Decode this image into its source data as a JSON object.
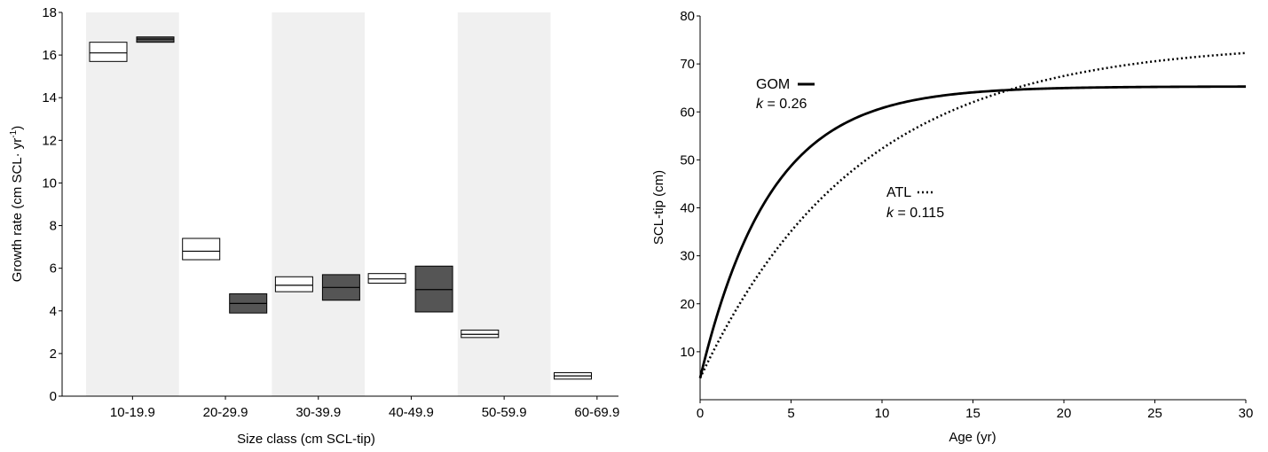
{
  "chart_data": [
    {
      "type": "boxplot",
      "xlabel": "Size class (cm SCL-tip)",
      "ylabel_main": "Growth rate (cm SCL· yr",
      "ylabel_sup": "-1",
      "ylabel_end": ")",
      "ylim": [
        0,
        18
      ],
      "yticks": [
        0,
        2,
        4,
        6,
        8,
        10,
        12,
        14,
        16,
        18
      ],
      "categories": [
        "10-19.9",
        "20-29.9",
        "30-39.9",
        "40-49.9",
        "50-59.9",
        "60-69.9"
      ],
      "shaded_bands": [
        "10-19.9",
        "30-39.9",
        "50-59.9"
      ],
      "series": [
        {
          "fill": "#ffffff",
          "boxes": [
            {
              "category": "10-19.9",
              "low": 15.7,
              "median": 16.1,
              "high": 16.6
            },
            {
              "category": "20-29.9",
              "low": 6.4,
              "median": 6.8,
              "high": 7.4
            },
            {
              "category": "30-39.9",
              "low": 4.9,
              "median": 5.2,
              "high": 5.6
            },
            {
              "category": "40-49.9",
              "low": 5.3,
              "median": 5.5,
              "high": 5.75
            },
            {
              "category": "50-59.9",
              "low": 2.75,
              "median": 2.9,
              "high": 3.1
            },
            {
              "category": "60-69.9",
              "low": 0.8,
              "median": 0.95,
              "high": 1.1
            }
          ]
        },
        {
          "fill": "#555555",
          "boxes": [
            {
              "category": "10-19.9",
              "low": 16.6,
              "median": 16.75,
              "high": 16.85
            },
            {
              "category": "20-29.9",
              "low": 3.9,
              "median": 4.35,
              "high": 4.8
            },
            {
              "category": "30-39.9",
              "low": 4.5,
              "median": 5.1,
              "high": 5.7
            },
            {
              "category": "40-49.9",
              "low": 3.95,
              "median": 5.0,
              "high": 6.1
            }
          ]
        }
      ],
      "colors": {
        "band": "#f0f0f0",
        "dark_box": "#555555"
      }
    },
    {
      "type": "line",
      "xlabel": "Age (yr)",
      "ylabel": "SCL-tip (cm)",
      "xlim": [
        0,
        30
      ],
      "ylim": [
        0,
        80
      ],
      "xticks": [
        0,
        5,
        10,
        15,
        20,
        25,
        30
      ],
      "yticks": [
        10,
        20,
        30,
        40,
        50,
        60,
        70,
        80
      ],
      "series": [
        {
          "name": "GOM",
          "k_label": "= 0.26",
          "k": 0.26,
          "Linf": 65.3,
          "L0": 4.5,
          "style": "solid"
        },
        {
          "name": "ATL",
          "k_label": "= 0.115",
          "k": 0.115,
          "Linf": 74.5,
          "L0": 4.5,
          "style": "dotted"
        }
      ],
      "k_symbol": "k"
    }
  ]
}
